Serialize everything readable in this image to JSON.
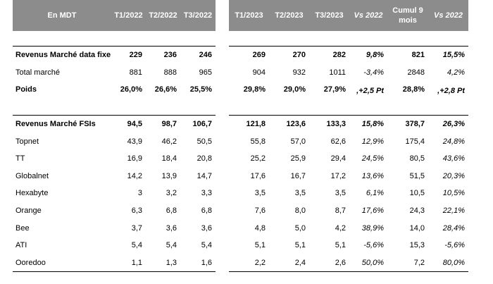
{
  "left": {
    "headers": [
      "En MDT",
      "T1/2022",
      "T2/2022",
      "T3/2022"
    ],
    "rows_a": [
      {
        "label": "Revenus Marché data fixe",
        "vals": [
          "229",
          "236",
          "246"
        ],
        "bold": true
      },
      {
        "label": "Total marché",
        "vals": [
          "881",
          "888",
          "965"
        ],
        "bold": false
      },
      {
        "label": "Poids",
        "vals": [
          "26,0%",
          "26,6%",
          "25,5%"
        ],
        "bold": true
      }
    ],
    "rows_b": [
      {
        "label": "Revenus Marché FSIs",
        "vals": [
          "94,5",
          "98,7",
          "106,7"
        ],
        "bold": true
      },
      {
        "label": "Topnet",
        "vals": [
          "43,9",
          "46,2",
          "50,5"
        ],
        "bold": false
      },
      {
        "label": "TT",
        "vals": [
          "16,9",
          "18,4",
          "20,8"
        ],
        "bold": false
      },
      {
        "label": "Globalnet",
        "vals": [
          "14,2",
          "13,9",
          "14,7"
        ],
        "bold": false
      },
      {
        "label": "Hexabyte",
        "vals": [
          "3",
          "3,2",
          "3,3"
        ],
        "bold": false
      },
      {
        "label": "Orange",
        "vals": [
          "6,3",
          "6,8",
          "6,8"
        ],
        "bold": false
      },
      {
        "label": "Bee",
        "vals": [
          "3,7",
          "3,6",
          "3,6"
        ],
        "bold": false
      },
      {
        "label": "ATI",
        "vals": [
          "5,4",
          "5,4",
          "5,4"
        ],
        "bold": false
      },
      {
        "label": "Ooredoo",
        "vals": [
          "1,1",
          "1,3",
          "1,6"
        ],
        "bold": false
      }
    ]
  },
  "right": {
    "headers": [
      "T1/2023",
      "T2/2023",
      "T3/2023",
      "Vs 2022",
      "Cumul 9 mois",
      "Vs 2022"
    ],
    "rows_a": [
      {
        "vals": [
          "269",
          "270",
          "282",
          "9,8%",
          "821",
          "15,5%"
        ],
        "bold": true
      },
      {
        "vals": [
          "904",
          "932",
          "1011",
          "-3,4%",
          "2848",
          "4,2%"
        ],
        "bold": false
      },
      {
        "vals": [
          "29,8%",
          "29,0%",
          "27,9%",
          ",+2,5 Pt",
          "28,8%",
          ",+2,8 Pt"
        ],
        "bold": true
      }
    ],
    "rows_b": [
      {
        "vals": [
          "121,8",
          "123,6",
          "133,3",
          "15,8%",
          "378,7",
          "26,3%"
        ],
        "bold": true
      },
      {
        "vals": [
          "55,8",
          "57,0",
          "62,6",
          "12,9%",
          "175,4",
          "24,8%"
        ],
        "bold": false
      },
      {
        "vals": [
          "25,2",
          "25,9",
          "29,4",
          "24,5%",
          "80,5",
          "43,6%"
        ],
        "bold": false
      },
      {
        "vals": [
          "17,6",
          "16,7",
          "17,2",
          "13,6%",
          "51,5",
          "20,3%"
        ],
        "bold": false
      },
      {
        "vals": [
          "3,5",
          "3,5",
          "3,5",
          "6,1%",
          "10,5",
          "10,5%"
        ],
        "bold": false
      },
      {
        "vals": [
          "7,6",
          "8,0",
          "8,7",
          "17,6%",
          "24,3",
          "22,1%"
        ],
        "bold": false
      },
      {
        "vals": [
          "4,8",
          "5,0",
          "4,2",
          "38,9%",
          "14,0",
          "28,4%"
        ],
        "bold": false
      },
      {
        "vals": [
          "5,1",
          "5,1",
          "5,1",
          "-5,6%",
          "15,3",
          "-5,6%"
        ],
        "bold": false
      },
      {
        "vals": [
          "2,2",
          "2,4",
          "2,6",
          "50,0%",
          "7,2",
          "80,0%"
        ],
        "bold": false
      }
    ]
  }
}
